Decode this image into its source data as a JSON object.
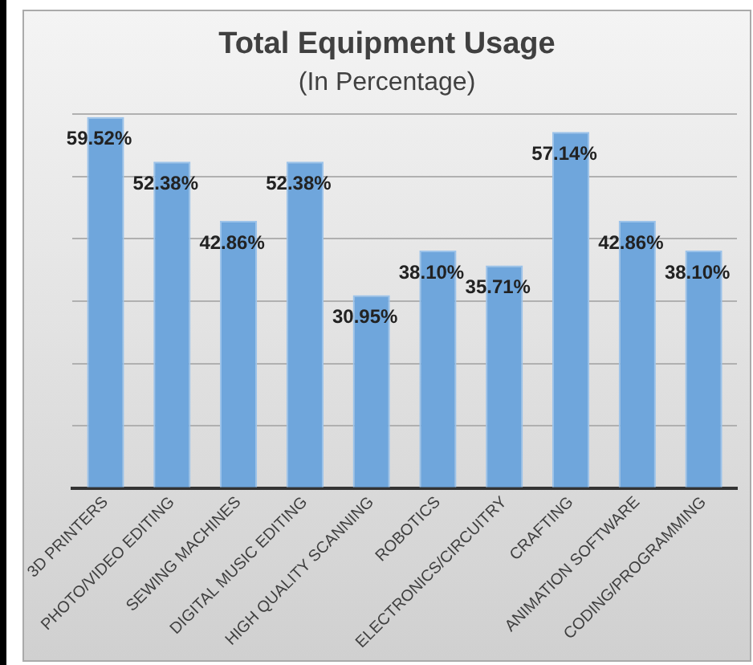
{
  "chart_data": {
    "type": "bar",
    "title": "Total Equipment Usage",
    "subtitle": "(In Percentage)",
    "categories": [
      "3D PRINTERS",
      "PHOTO/VIDEO EDITING",
      "SEWING MACHINES",
      "DIGITAL MUSIC EDITING",
      "HIGH QUALITY SCANNING",
      "ROBOTICS",
      "ELECTRONICS/CIRCUITRY",
      "CRAFTING",
      "ANIMATION SOFTWARE",
      "CODING/PROGRAMMING"
    ],
    "values": [
      59.52,
      52.38,
      42.86,
      52.38,
      30.95,
      38.1,
      35.71,
      57.14,
      42.86,
      38.1
    ],
    "value_labels": [
      "59.52%",
      "52.38%",
      "42.86%",
      "52.38%",
      "30.95%",
      "38.10%",
      "35.71%",
      "57.14%",
      "42.86%",
      "38.10%"
    ],
    "color": "#6fa6dc",
    "ylim": [
      0,
      60
    ],
    "yticks": [
      {
        "value": 0,
        "label": null
      },
      {
        "value": 10,
        "label": null
      },
      {
        "value": 20,
        "label": null
      },
      {
        "value": 30,
        "label": null
      },
      {
        "value": 40,
        "label": null
      },
      {
        "value": 50,
        "label": null
      },
      {
        "value": 60,
        "label": null
      }
    ],
    "grid": "y",
    "tick_labels": "x",
    "legend": false
  }
}
